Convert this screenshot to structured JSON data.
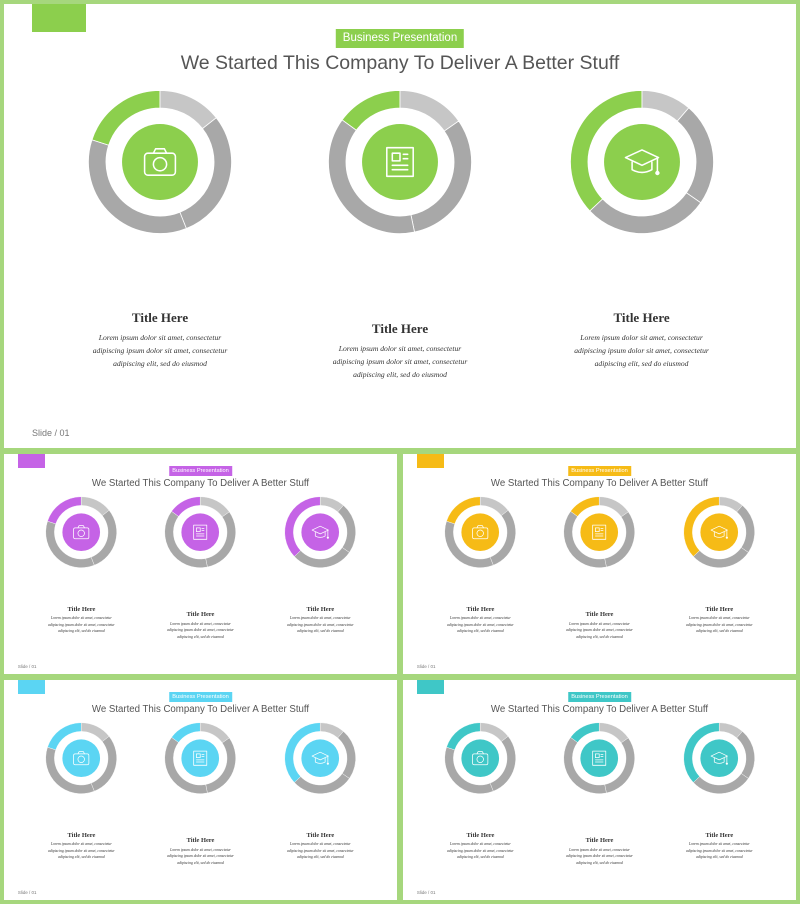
{
  "background_color": "#a6d77d",
  "badge_label": "Business Presentation",
  "heading": "We Started This Company To Deliver A Better Stuff",
  "slide_number": "Slide / 01",
  "ring_gray_light": "#c6c6c6",
  "ring_gray_dark": "#a8a8a8",
  "items": [
    {
      "title": "Title Here",
      "text": "Lorem ipsum dolor sit amet, consectetur adipiscing ipsum dolor sit amet, consectetur adipiscing elit, sed do eiusmod",
      "icon": "camera-icon",
      "accent_fraction": 0.2
    },
    {
      "title": "Title Here",
      "text": "Lorem ipsum dolor sit amet, consectetur adipiscing ipsum dolor sit amet, consectetur adipiscing elit, sed do eiusmod",
      "icon": "newspaper-icon",
      "accent_fraction": 0.15
    },
    {
      "title": "Title Here",
      "text": "Lorem ipsum dolor sit amet, consectetur adipiscing ipsum dolor sit amet, consectetur adipiscing elit, sed do eiusmod",
      "icon": "graduation-cap-icon",
      "accent_fraction": 0.37
    }
  ],
  "slides": [
    {
      "theme": "green",
      "accent": "#8ccf4d"
    },
    {
      "theme": "purple",
      "accent": "#c563e6"
    },
    {
      "theme": "yellow",
      "accent": "#f6bb16"
    },
    {
      "theme": "blue",
      "accent": "#5bd5f3"
    },
    {
      "theme": "teal",
      "accent": "#3fc7c7"
    }
  ]
}
